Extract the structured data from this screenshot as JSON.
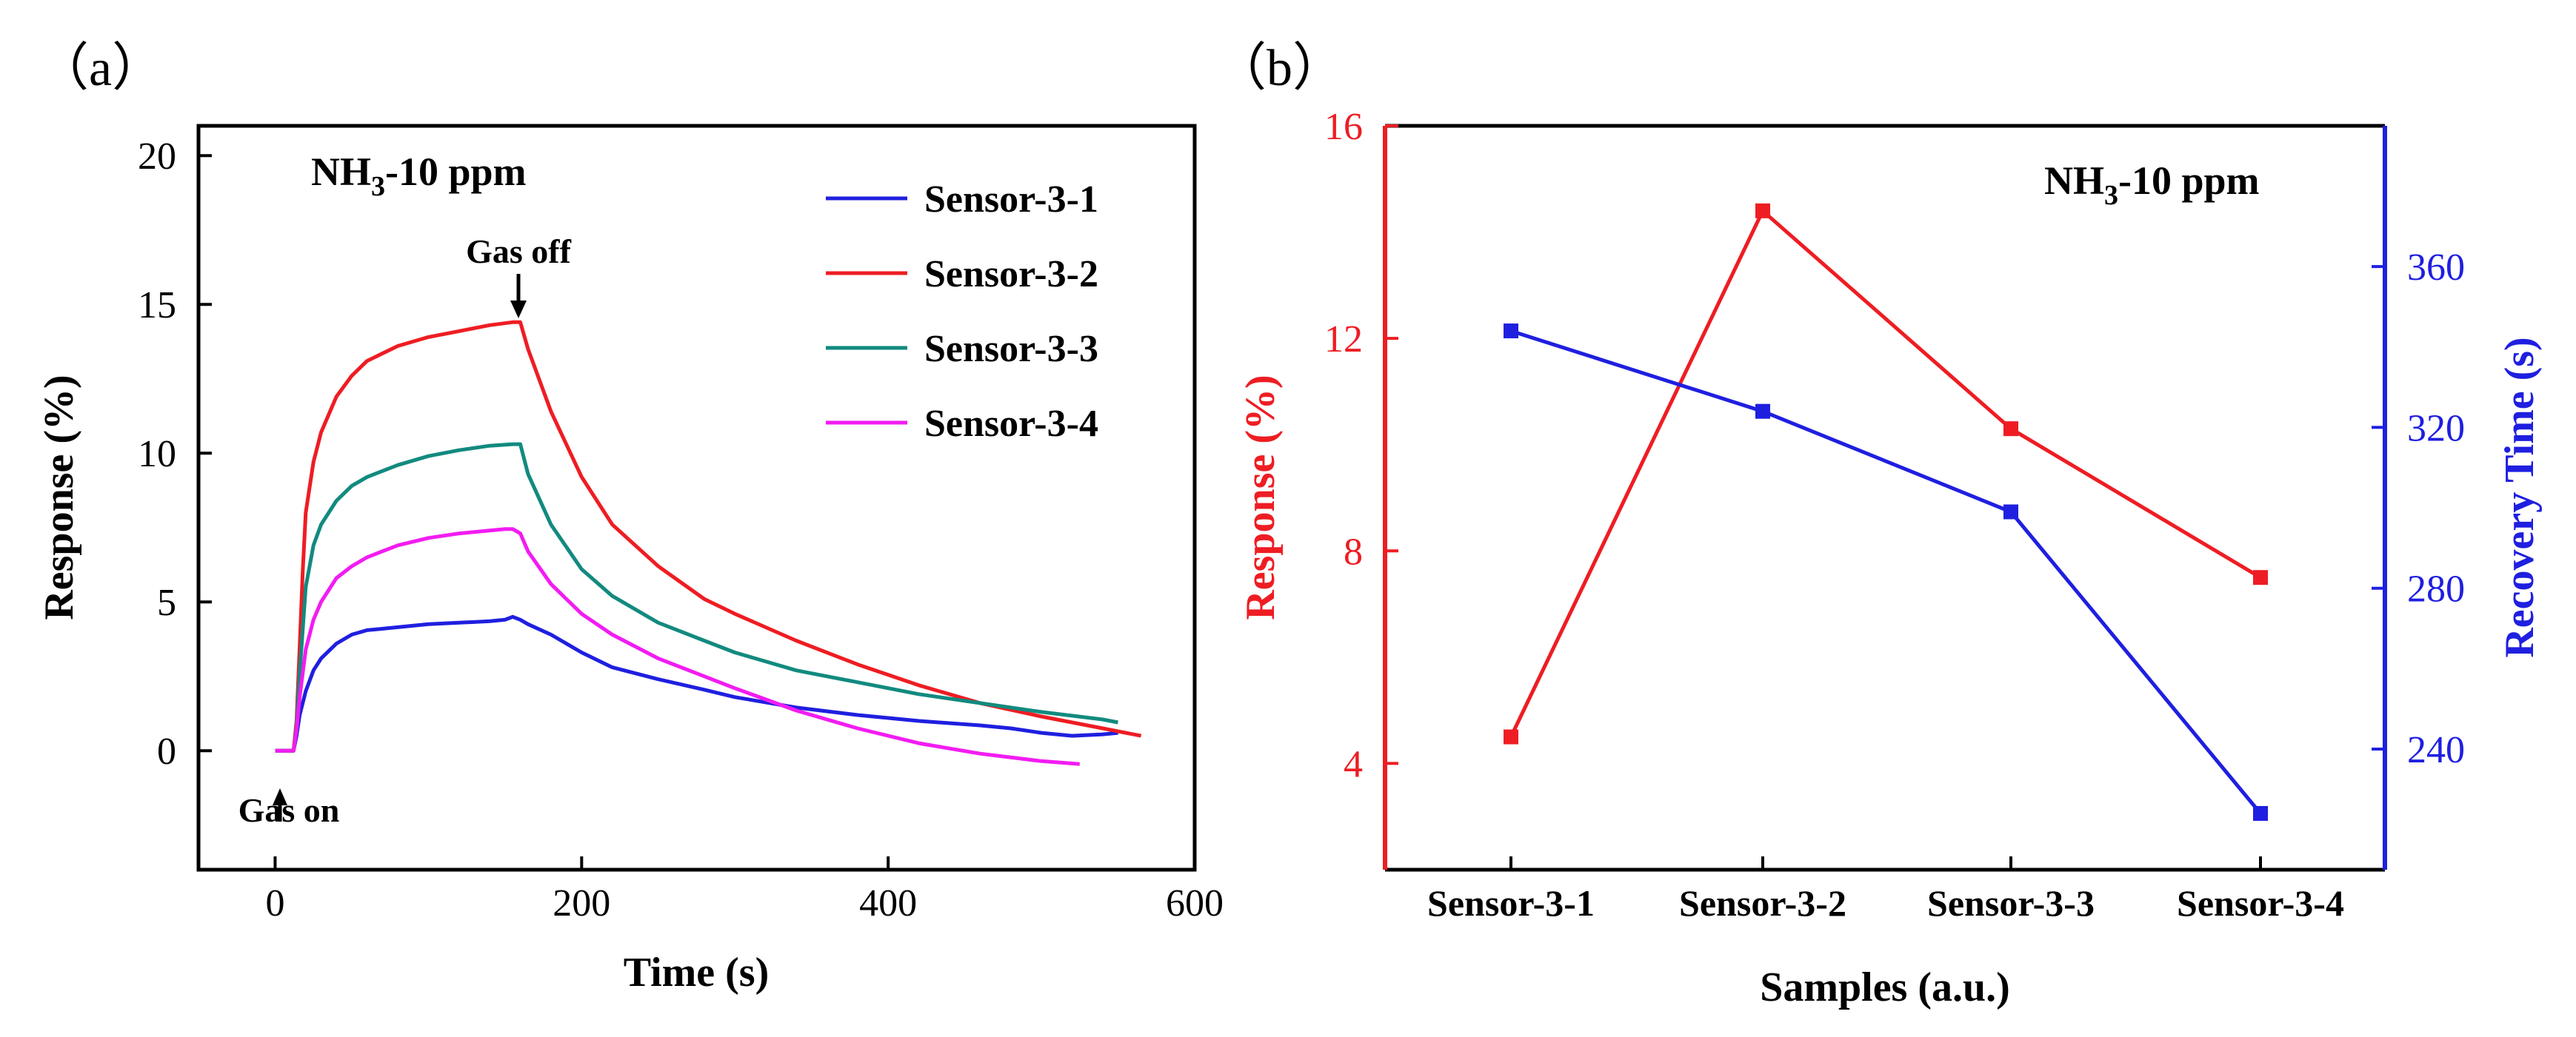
{
  "chart_data": [
    {
      "panel_label": "（a）",
      "type": "line",
      "title": "",
      "annotation_main": "NH",
      "annotation_sub": "3",
      "annotation_rest": "-10 ppm",
      "xlabel": "Time (s)",
      "ylabel": "Response (%)",
      "xlim": [
        -50,
        600
      ],
      "ylim": [
        -4,
        21
      ],
      "xticks": [
        0,
        200,
        400,
        600
      ],
      "yticks": [
        0,
        5,
        10,
        15,
        20
      ],
      "legend": [
        "Sensor-3-1",
        "Sensor-3-2",
        "Sensor-3-3",
        "Sensor-3-4"
      ],
      "legend_position": "top-right",
      "annotations": [
        {
          "text": "Gas off",
          "x": 160,
          "y": 14.4
        },
        {
          "text": "Gas on",
          "x": 12,
          "y": 0
        }
      ],
      "series": [
        {
          "name": "Sensor-3-1",
          "color": "#1f1fe0",
          "x": [
            0,
            12,
            14,
            16,
            20,
            25,
            30,
            40,
            50,
            60,
            80,
            100,
            120,
            140,
            150,
            155,
            160,
            165,
            180,
            200,
            220,
            250,
            280,
            300,
            340,
            380,
            420,
            460,
            480,
            500,
            520,
            540,
            550
          ],
          "y": [
            0,
            0,
            0.5,
            1.2,
            2.0,
            2.7,
            3.1,
            3.6,
            3.9,
            4.05,
            4.15,
            4.25,
            4.3,
            4.35,
            4.4,
            4.5,
            4.4,
            4.25,
            3.9,
            3.3,
            2.8,
            2.4,
            2.05,
            1.8,
            1.45,
            1.2,
            1.0,
            0.85,
            0.75,
            0.6,
            0.5,
            0.55,
            0.6
          ]
        },
        {
          "name": "Sensor-3-2",
          "color": "#ee1d23",
          "x": [
            0,
            12,
            14,
            16,
            18,
            20,
            25,
            30,
            40,
            50,
            60,
            80,
            100,
            120,
            140,
            155,
            160,
            165,
            180,
            200,
            220,
            250,
            280,
            300,
            340,
            380,
            420,
            460,
            500,
            540,
            565
          ],
          "y": [
            0,
            0,
            1.0,
            3.5,
            6.0,
            8.0,
            9.7,
            10.7,
            11.9,
            12.6,
            13.1,
            13.6,
            13.9,
            14.1,
            14.3,
            14.4,
            14.4,
            13.5,
            11.4,
            9.2,
            7.6,
            6.2,
            5.1,
            4.6,
            3.7,
            2.9,
            2.2,
            1.6,
            1.15,
            0.75,
            0.5
          ]
        },
        {
          "name": "Sensor-3-3",
          "color": "#128a7f",
          "x": [
            0,
            12,
            14,
            16,
            20,
            25,
            30,
            40,
            50,
            60,
            80,
            100,
            120,
            140,
            155,
            160,
            165,
            180,
            200,
            220,
            250,
            280,
            300,
            340,
            380,
            420,
            460,
            500,
            540,
            550
          ],
          "y": [
            0,
            0,
            0.8,
            2.6,
            5.5,
            6.9,
            7.6,
            8.4,
            8.9,
            9.2,
            9.6,
            9.9,
            10.1,
            10.25,
            10.3,
            10.3,
            9.3,
            7.6,
            6.1,
            5.2,
            4.3,
            3.7,
            3.3,
            2.7,
            2.3,
            1.9,
            1.6,
            1.3,
            1.05,
            0.95
          ]
        },
        {
          "name": "Sensor-3-4",
          "color": "#f21cf2",
          "x": [
            0,
            12,
            14,
            16,
            20,
            25,
            30,
            40,
            50,
            60,
            80,
            100,
            120,
            140,
            150,
            155,
            160,
            165,
            180,
            200,
            220,
            250,
            280,
            300,
            340,
            380,
            420,
            460,
            500,
            525
          ],
          "y": [
            0,
            0,
            0.7,
            1.8,
            3.4,
            4.4,
            5.0,
            5.8,
            6.2,
            6.5,
            6.9,
            7.15,
            7.3,
            7.4,
            7.45,
            7.45,
            7.3,
            6.7,
            5.6,
            4.6,
            3.9,
            3.1,
            2.5,
            2.1,
            1.35,
            0.75,
            0.25,
            -0.1,
            -0.35,
            -0.45
          ]
        }
      ]
    },
    {
      "panel_label": "（b）",
      "type": "line",
      "title": "",
      "annotation_main": "NH",
      "annotation_sub": "3",
      "annotation_rest": "-10 ppm",
      "xlabel": "Samples (a.u.)",
      "ylabel": "Response (%)",
      "y2label": "Recovery Time (s)",
      "categories": [
        "Sensor-3-1",
        "Sensor-3-2",
        "Sensor-3-3",
        "Sensor-3-4"
      ],
      "ylim": [
        2,
        16
      ],
      "yticks": [
        4,
        8,
        12,
        16
      ],
      "y2lim": [
        210,
        395
      ],
      "y2ticks": [
        240,
        280,
        320,
        360
      ],
      "series": [
        {
          "name": "Response (%)",
          "axis": "left",
          "color": "#ee1d23",
          "values": [
            4.5,
            14.4,
            10.3,
            7.5
          ]
        },
        {
          "name": "Recovery Time (s)",
          "axis": "right",
          "color": "#1f1fe0",
          "values": [
            344,
            324,
            299,
            224
          ]
        }
      ]
    }
  ]
}
